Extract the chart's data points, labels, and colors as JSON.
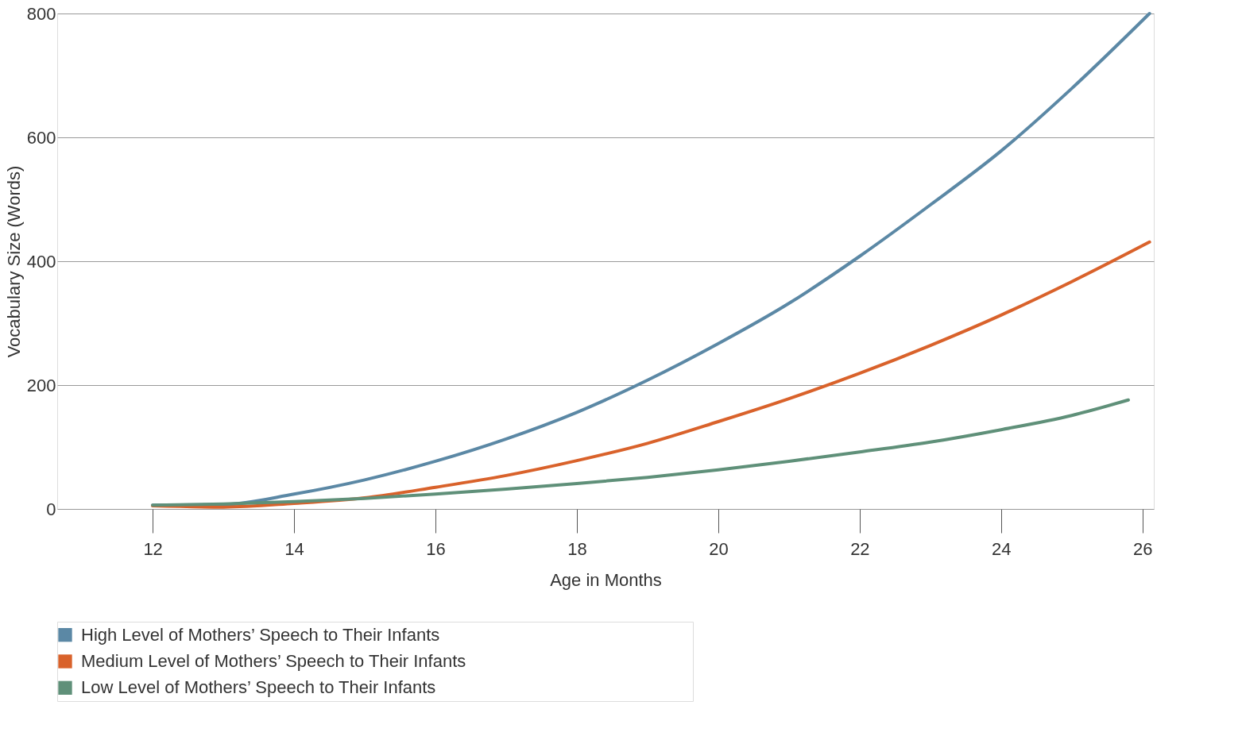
{
  "chart_data": {
    "type": "line",
    "xlabel": "Age in Months",
    "ylabel": "Vocabulary Size (Words)",
    "xlim": [
      10.65,
      26.16
    ],
    "ylim": [
      0,
      800
    ],
    "xticks": [
      12,
      14,
      16,
      18,
      20,
      22,
      24,
      26
    ],
    "yticks": [
      0,
      200,
      400,
      600,
      800
    ],
    "grid": "y",
    "legend": "bottom left",
    "marker": "none",
    "line_style": "solid",
    "series": [
      {
        "name": "High Level of Mothers’ Speech to Their Infants",
        "color": "#5b88a5",
        "x": [
          12,
          13,
          14,
          15,
          16,
          17,
          18,
          19,
          20,
          21,
          22,
          23,
          24,
          25,
          26.1
        ],
        "values": [
          6,
          7,
          24,
          47,
          77,
          113,
          156,
          208,
          267,
          332,
          408,
          491,
          578,
          679,
          800
        ]
      },
      {
        "name": "Medium Level of Mothers’ Speech to Their Infants",
        "color": "#d9622b",
        "x": [
          12,
          13,
          14,
          15,
          16,
          17,
          18,
          19,
          20,
          21,
          22,
          23,
          24,
          25,
          26.1
        ],
        "values": [
          5,
          3,
          9,
          18,
          35,
          54,
          78,
          106,
          141,
          178,
          219,
          264,
          313,
          367,
          431
        ]
      },
      {
        "name": "Low Level of Mothers’ Speech to Their Infants",
        "color": "#5f9079",
        "x": [
          12,
          13,
          14,
          15,
          16,
          17,
          18,
          19,
          20,
          21,
          22,
          23,
          24,
          25,
          25.8
        ],
        "values": [
          6,
          8,
          12,
          17,
          24,
          32,
          41,
          51,
          63,
          77,
          92,
          108,
          128,
          151,
          176
        ]
      }
    ]
  }
}
